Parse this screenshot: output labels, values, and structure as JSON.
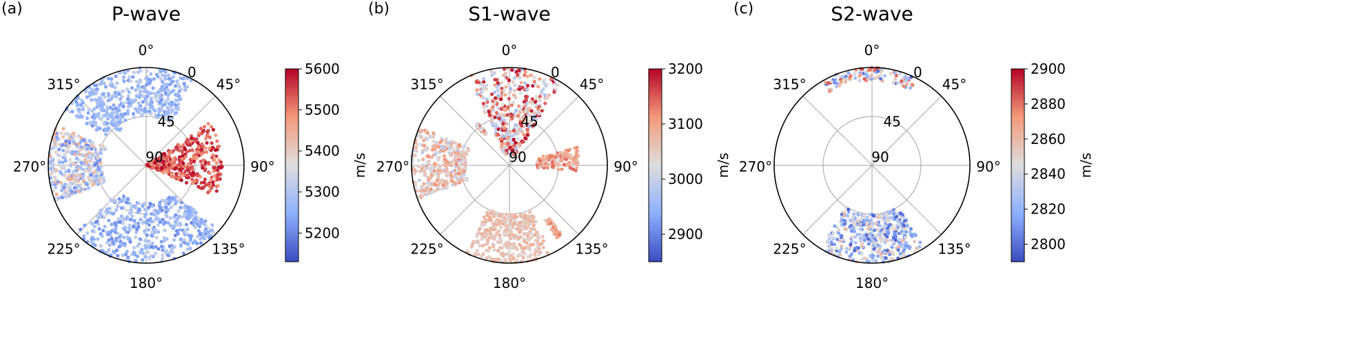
{
  "chart_data": [
    {
      "type": "scatter",
      "panel_label": "(a)",
      "title": "P-wave",
      "coordinate_system": "polar",
      "theta_zero": "top",
      "theta_direction": "clockwise",
      "angle_tick_labels": [
        "0°",
        "45°",
        "90°",
        "135°",
        "180°",
        "225°",
        "270°",
        "315°"
      ],
      "radial_tick_labels": [
        "0",
        "45",
        "90"
      ],
      "radial_range": [
        0,
        90
      ],
      "radial_direction": "inverted (0 at outer edge, 90 at centre)",
      "grid": true,
      "colormap": "coolwarm",
      "colorbar": {
        "label": "m/s",
        "min": 5130,
        "max": 5600,
        "ticks": [
          "5200",
          "5300",
          "5400",
          "5500",
          "5600"
        ]
      },
      "clusters": [
        {
          "azimuth_range": [
            -55,
            30
          ],
          "radius_range": [
            0,
            45
          ],
          "value_range": [
            5220,
            5330
          ]
        },
        {
          "azimuth_range": [
            -40,
            -34
          ],
          "radius_range": [
            0,
            50
          ],
          "value_range": [
            5240,
            5300
          ]
        },
        {
          "azimuth_range": [
            56,
            114
          ],
          "radius_range": [
            20,
            90
          ],
          "value_range": [
            5470,
            5600
          ]
        },
        {
          "azimuth_range": [
            132,
            142
          ],
          "radius_range": [
            0,
            35
          ],
          "value_range": [
            5220,
            5300
          ]
        },
        {
          "azimuth_range": [
            135,
            226
          ],
          "radius_range": [
            0,
            55
          ],
          "value_range": [
            5200,
            5330
          ]
        },
        {
          "azimuth_range": [
            248,
            294
          ],
          "radius_range": [
            0,
            50
          ],
          "value_range": [
            5200,
            5450
          ]
        }
      ]
    },
    {
      "type": "scatter",
      "panel_label": "(b)",
      "title": "S1-wave",
      "coordinate_system": "polar",
      "theta_zero": "top",
      "theta_direction": "clockwise",
      "angle_tick_labels": [
        "0°",
        "45°",
        "90°",
        "135°",
        "180°",
        "225°",
        "270°",
        "315°"
      ],
      "radial_tick_labels": [
        "0",
        "45",
        "90"
      ],
      "radial_range": [
        0,
        90
      ],
      "radial_direction": "inverted (0 at outer edge, 90 at centre)",
      "grid": true,
      "colormap": "coolwarm",
      "colorbar": {
        "label": "m/s",
        "min": 2850,
        "max": 3200,
        "ticks": [
          "2900",
          "3000",
          "3100",
          "3200"
        ]
      },
      "clusters": [
        {
          "azimuth_range": [
            -25,
            32
          ],
          "radius_range": [
            0,
            80
          ],
          "value_range": [
            2960,
            3200
          ]
        },
        {
          "azimuth_range": [
            -40,
            -36
          ],
          "radius_range": [
            42,
            55
          ],
          "value_range": [
            2990,
            3180
          ]
        },
        {
          "azimuth_range": [
            75,
            95
          ],
          "radius_range": [
            25,
            65
          ],
          "value_range": [
            3060,
            3150
          ]
        },
        {
          "azimuth_range": [
            143,
            147
          ],
          "radius_range": [
            10,
            30
          ],
          "value_range": [
            3050,
            3130
          ]
        },
        {
          "azimuth_range": [
            155,
            206
          ],
          "radius_range": [
            0,
            45
          ],
          "value_range": [
            3030,
            3090
          ]
        },
        {
          "azimuth_range": [
            250,
            293
          ],
          "radius_range": [
            0,
            50
          ],
          "value_range": [
            2990,
            3120
          ]
        }
      ]
    },
    {
      "type": "scatter",
      "panel_label": "(c)",
      "title": "S2-wave",
      "coordinate_system": "polar",
      "theta_zero": "top",
      "theta_direction": "clockwise",
      "angle_tick_labels": [
        "0°",
        "45°",
        "90°",
        "135°",
        "180°",
        "225°",
        "270°",
        "315°"
      ],
      "radial_tick_labels": [
        "0",
        "45",
        "90"
      ],
      "radial_range": [
        0,
        90
      ],
      "radial_direction": "inverted (0 at outer edge, 90 at centre)",
      "grid": true,
      "colormap": "coolwarm",
      "colorbar": {
        "label": "m/s",
        "min": 2790,
        "max": 2900,
        "ticks": [
          "2800",
          "2820",
          "2840",
          "2860",
          "2880",
          "2900"
        ]
      },
      "clusters": [
        {
          "azimuth_range": [
            -30,
            28
          ],
          "radius_range": [
            0,
            12
          ],
          "value_range": [
            2795,
            2890
          ]
        },
        {
          "azimuth_range": [
            148,
            212
          ],
          "radius_range": [
            0,
            45
          ],
          "value_range": [
            2795,
            2860
          ]
        }
      ]
    }
  ]
}
